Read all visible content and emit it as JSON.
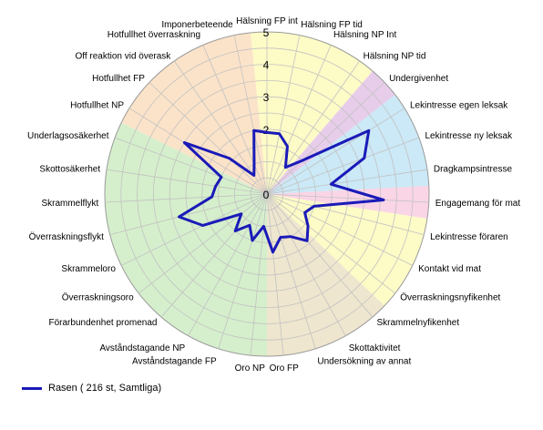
{
  "chart_data": {
    "type": "radar",
    "categories": [
      "Hälsning FP int",
      "Hälsning FP tid",
      "Hälsning NP Int",
      "Hälsning NP tid",
      "Undergivenhet",
      "Lekintresse egen leksak",
      "Lekintresse ny leksak",
      "Dragkampsintresse",
      "Engagemang för mat",
      "Lekintresse föraren",
      "Kontakt vid mat",
      "Överraskningsnyfikenhet",
      "Skrammelnyfikenhet",
      "Skottaktivitet",
      "Undersökning av annat",
      "Oro FP",
      "Oro NP",
      "Avståndstagande FP",
      "Avståndstagande NP",
      "Förarbundenhet promenad",
      "Överraskningsoro",
      "Skrammeloro",
      "Överraskningsflykt",
      "Skrammelflykt",
      "Skottosäkerhet",
      "Underlagsosäkerhet",
      "Hotfullhet NP",
      "Hotfullhet FP",
      "Off reaktion vid överask",
      "Hotfullhet överraskning",
      "Imponerbeteende"
    ],
    "series": [
      {
        "name": "Rasen ( 216 st, Samtliga)",
        "color": "#1a1ab8",
        "values": [
          1.9,
          1.9,
          1.6,
          1.0,
          1.5,
          3.7,
          3.2,
          2.0,
          3.6,
          1.5,
          1.3,
          1.6,
          1.9,
          1.5,
          1.4,
          1.8,
          1.0,
          1.5,
          1.1,
          1.5,
          1.0,
          2.2,
          2.8,
          1.7,
          1.6,
          1.5,
          3.0,
          1.6,
          0.7,
          1.0,
          2.0
        ]
      }
    ],
    "rlim": [
      0,
      5
    ],
    "rticks": [
      "0",
      "1",
      "2",
      "3",
      "4",
      "5"
    ],
    "ticks_shown": [
      "2",
      "3",
      "4",
      "5"
    ],
    "background_sectors": [
      {
        "from": 0,
        "to": 3,
        "color": "#fdfbc6"
      },
      {
        "from": 4,
        "to": 4,
        "color": "#e7cdea"
      },
      {
        "from": 5,
        "to": 7,
        "color": "#cbe9f6"
      },
      {
        "from": 8,
        "to": 8,
        "color": "#f9d5e6"
      },
      {
        "from": 9,
        "to": 11,
        "color": "#fdfbc6"
      },
      {
        "from": 12,
        "to": 15,
        "color": "#efe6cf"
      },
      {
        "from": 16,
        "to": 25,
        "color": "#d5efcc"
      },
      {
        "from": 26,
        "to": 30,
        "color": "#fbe3c9"
      }
    ],
    "grid": true,
    "legend_position": "bottom-left"
  },
  "legend": {
    "label": "Rasen ( 216 st, Samtliga)"
  }
}
